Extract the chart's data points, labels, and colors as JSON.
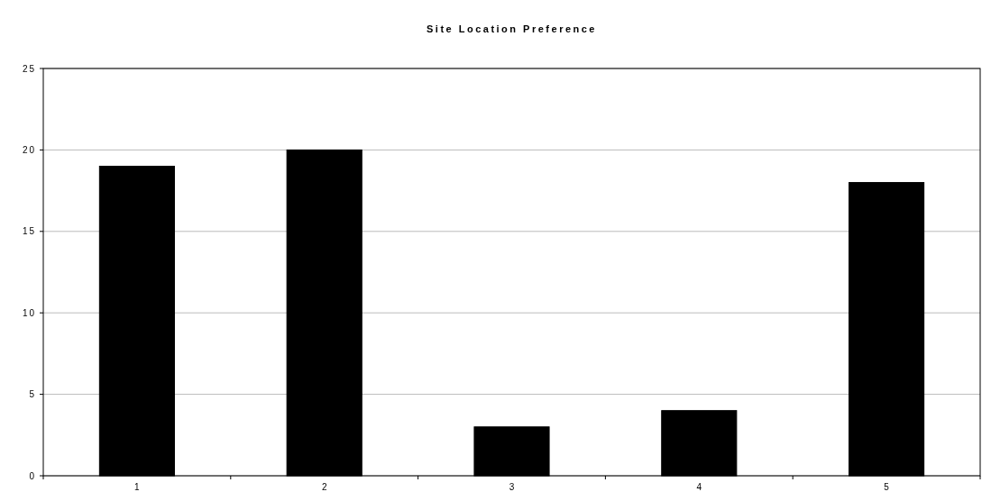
{
  "chart_data": {
    "type": "bar",
    "title": "Site Location Preference",
    "categories": [
      "1",
      "2",
      "3",
      "4",
      "5"
    ],
    "values": [
      19,
      20,
      3,
      4,
      18
    ],
    "color": "#000000",
    "ylim": [
      0,
      25
    ],
    "yticks": [
      0,
      5,
      10,
      15,
      20,
      25
    ],
    "grid": "y"
  }
}
